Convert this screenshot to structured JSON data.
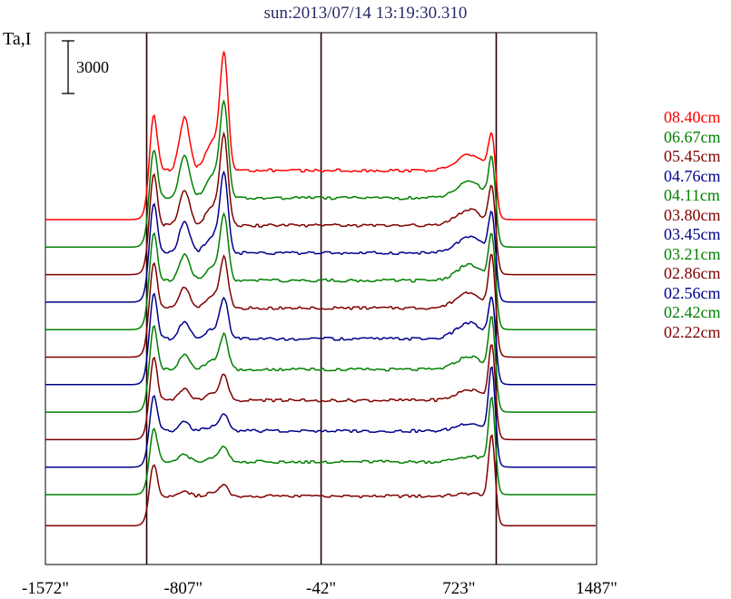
{
  "title": "sun:2013/07/14 13:19:30.310",
  "ylabel": "Ta,I",
  "scale_bar_label": "3000",
  "colors": {
    "red": "#ff0000",
    "green": "#008000",
    "maroon": "#800000",
    "navy": "#00008b"
  },
  "chart_data": {
    "type": "line",
    "title": "sun:2013/07/14 13:19:30.310",
    "ylabel": "Ta,I",
    "xlabel": "",
    "x_ticks": [
      "-1572\"",
      "-807\"",
      "-42\"",
      "723\"",
      "1487\""
    ],
    "x_tick_values": [
      -1572,
      -807,
      -42,
      723,
      1487
    ],
    "xlim": [
      -1572,
      1487
    ],
    "scale_bar": {
      "label": "3000",
      "value": 3000
    },
    "limb_markers": [
      -1010,
      -42,
      930
    ],
    "grid": false,
    "legend_position": "right",
    "series": [
      {
        "name": "08.40cm",
        "color": "#ff0000",
        "peaks": [
          6300,
          3000,
          6200,
          4950
        ]
      },
      {
        "name": "06.67cm",
        "color": "#008000",
        "peaks": [
          5900,
          2400,
          5100,
          5100
        ]
      },
      {
        "name": "05.45cm",
        "color": "#800000",
        "peaks": [
          6000,
          2000,
          4800,
          5000
        ]
      },
      {
        "name": "04.76cm",
        "color": "#00008b",
        "peaks": [
          6000,
          1800,
          4300,
          5200
        ]
      },
      {
        "name": "04.11cm",
        "color": "#008000",
        "peaks": [
          5800,
          1500,
          3600,
          5400
        ]
      },
      {
        "name": "03.80cm",
        "color": "#800000",
        "peaks": [
          5700,
          1200,
          2700,
          5800
        ]
      },
      {
        "name": "03.45cm",
        "color": "#00008b",
        "peaks": [
          5500,
          1000,
          2200,
          5000
        ]
      },
      {
        "name": "03.21cm",
        "color": "#008000",
        "peaks": [
          5200,
          900,
          1900,
          5400
        ]
      },
      {
        "name": "02.86cm",
        "color": "#800000",
        "peaks": [
          4900,
          700,
          1400,
          5500
        ]
      },
      {
        "name": "02.56cm",
        "color": "#00008b",
        "peaks": [
          4300,
          500,
          900,
          5800
        ]
      },
      {
        "name": "02.42cm",
        "color": "#008000",
        "peaks": [
          4000,
          400,
          800,
          5600
        ]
      },
      {
        "name": "02.22cm",
        "color": "#800000",
        "peaks": [
          3700,
          300,
          700,
          5200
        ]
      }
    ]
  }
}
